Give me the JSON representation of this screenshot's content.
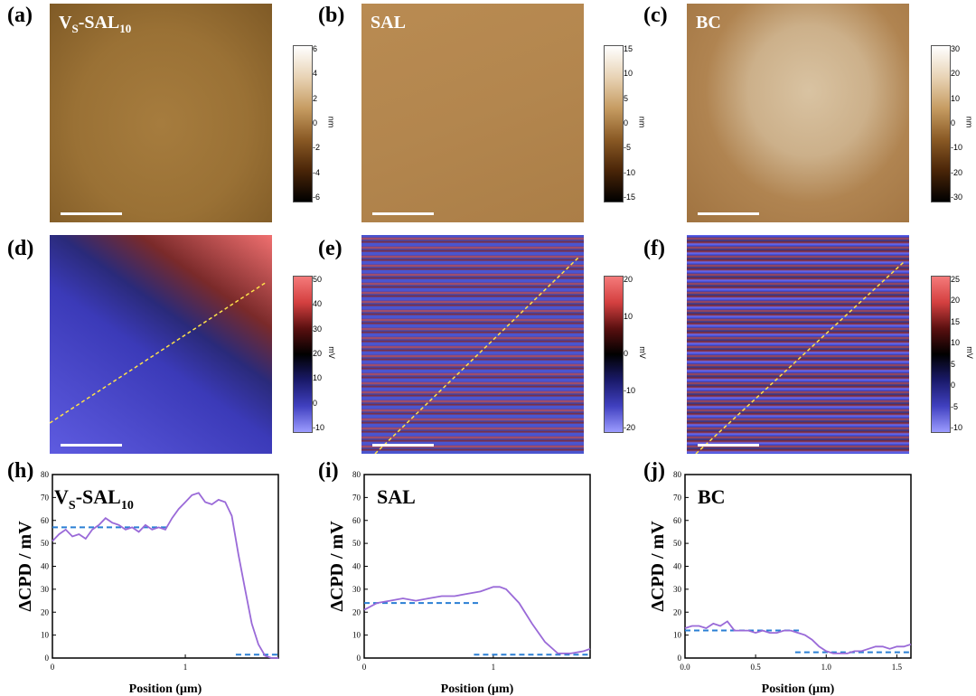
{
  "labels": {
    "a": "(a)",
    "b": "(b)",
    "c": "(c)",
    "d": "(d)",
    "e": "(e)",
    "f": "(f)",
    "h": "(h)",
    "i": "(i)",
    "j": "(j)"
  },
  "images": {
    "a_title_main": "V",
    "a_title_sub1": "S",
    "a_title_mid": "-SAL",
    "a_title_sub2": "10",
    "b_title": "SAL",
    "c_title": "BC"
  },
  "colorbars": [
    {
      "ticks": [
        "6",
        "4",
        "2",
        "0",
        "-2",
        "-4",
        "-6"
      ],
      "unit": "nm"
    },
    {
      "ticks": [
        "15",
        "10",
        "5",
        "0",
        "-5",
        "-10",
        "-15"
      ],
      "unit": "nm"
    },
    {
      "ticks": [
        "30",
        "20",
        "10",
        "0",
        "-10",
        "-20",
        "-30"
      ],
      "unit": "nm"
    },
    {
      "ticks": [
        "50",
        "40",
        "30",
        "20",
        "10",
        "0",
        "-10"
      ],
      "unit": "mV"
    },
    {
      "ticks": [
        "20",
        "10",
        "0",
        "-10",
        "-20"
      ],
      "unit": "mV"
    },
    {
      "ticks": [
        "25",
        "20",
        "15",
        "10",
        "5",
        "0",
        "-5",
        "-10"
      ],
      "unit": "mV"
    }
  ],
  "chart_data": [
    {
      "type": "line",
      "title_main": "V",
      "title_sub1": "S",
      "title_mid": "-SAL",
      "title_sub2": "10",
      "xlabel": "Position (μm)",
      "ylabel": "ΔCPD / mV",
      "xlim": [
        0,
        1.7
      ],
      "ylim": [
        0,
        80
      ],
      "xticks": [
        "0",
        "1"
      ],
      "yticks": [
        "0",
        "10",
        "20",
        "30",
        "40",
        "50",
        "60",
        "70",
        "80"
      ],
      "x": [
        0,
        0.05,
        0.1,
        0.15,
        0.2,
        0.25,
        0.3,
        0.35,
        0.4,
        0.45,
        0.5,
        0.55,
        0.6,
        0.65,
        0.7,
        0.75,
        0.8,
        0.85,
        0.9,
        0.95,
        1.0,
        1.05,
        1.1,
        1.15,
        1.2,
        1.25,
        1.3,
        1.35,
        1.4,
        1.45,
        1.5,
        1.55,
        1.6,
        1.65,
        1.7
      ],
      "y": [
        51,
        54,
        56,
        53,
        54,
        52,
        56,
        58,
        61,
        59,
        58,
        56,
        57,
        55,
        58,
        56,
        57,
        56,
        61,
        65,
        68,
        71,
        72,
        68,
        67,
        69,
        68,
        62,
        45,
        30,
        15,
        6,
        1,
        0,
        0
      ],
      "levels": [
        {
          "x0": 0,
          "x1": 0.88,
          "y": 57
        },
        {
          "x0": 1.38,
          "x1": 1.7,
          "y": 1.5
        }
      ]
    },
    {
      "type": "line",
      "title": "SAL",
      "xlabel": "Position (μm)",
      "ylabel": "ΔCPD / mV",
      "xlim": [
        0,
        1.75
      ],
      "ylim": [
        0,
        80
      ],
      "xticks": [
        "0",
        "1"
      ],
      "yticks": [
        "0",
        "10",
        "20",
        "30",
        "40",
        "50",
        "60",
        "70",
        "80"
      ],
      "x": [
        0,
        0.1,
        0.2,
        0.3,
        0.4,
        0.5,
        0.6,
        0.7,
        0.8,
        0.9,
        1.0,
        1.05,
        1.1,
        1.2,
        1.3,
        1.4,
        1.5,
        1.6,
        1.7,
        1.75
      ],
      "y": [
        21,
        24,
        25,
        26,
        25,
        26,
        27,
        27,
        28,
        29,
        31,
        31,
        30,
        24,
        15,
        7,
        2,
        2,
        3,
        4
      ],
      "levels": [
        {
          "x0": 0,
          "x1": 0.9,
          "y": 24
        },
        {
          "x0": 0.85,
          "x1": 1.75,
          "y": 1.5
        }
      ]
    },
    {
      "type": "line",
      "title": "BC",
      "xlabel": "Position (μm)",
      "ylabel": "ΔCPD / mV",
      "xlim": [
        0,
        1.6
      ],
      "ylim": [
        0,
        80
      ],
      "xticks": [
        "0.0",
        "0.5",
        "1.0",
        "1.5"
      ],
      "yticks": [
        "0",
        "10",
        "20",
        "30",
        "40",
        "50",
        "60",
        "70",
        "80"
      ],
      "x": [
        0,
        0.05,
        0.1,
        0.15,
        0.2,
        0.25,
        0.3,
        0.35,
        0.4,
        0.45,
        0.5,
        0.55,
        0.6,
        0.65,
        0.7,
        0.75,
        0.8,
        0.85,
        0.9,
        0.95,
        1.0,
        1.05,
        1.1,
        1.15,
        1.2,
        1.25,
        1.3,
        1.35,
        1.4,
        1.45,
        1.5,
        1.55,
        1.6
      ],
      "y": [
        13,
        14,
        14,
        13,
        15,
        14,
        16,
        12,
        12,
        12,
        11,
        12,
        11,
        11,
        12,
        12,
        11,
        10,
        8,
        5,
        3,
        2,
        2,
        2,
        3,
        3,
        4,
        5,
        5,
        4,
        5,
        5,
        6
      ],
      "levels": [
        {
          "x0": 0,
          "x1": 0.82,
          "y": 12
        },
        {
          "x0": 0.78,
          "x1": 1.6,
          "y": 2.5
        }
      ]
    }
  ]
}
